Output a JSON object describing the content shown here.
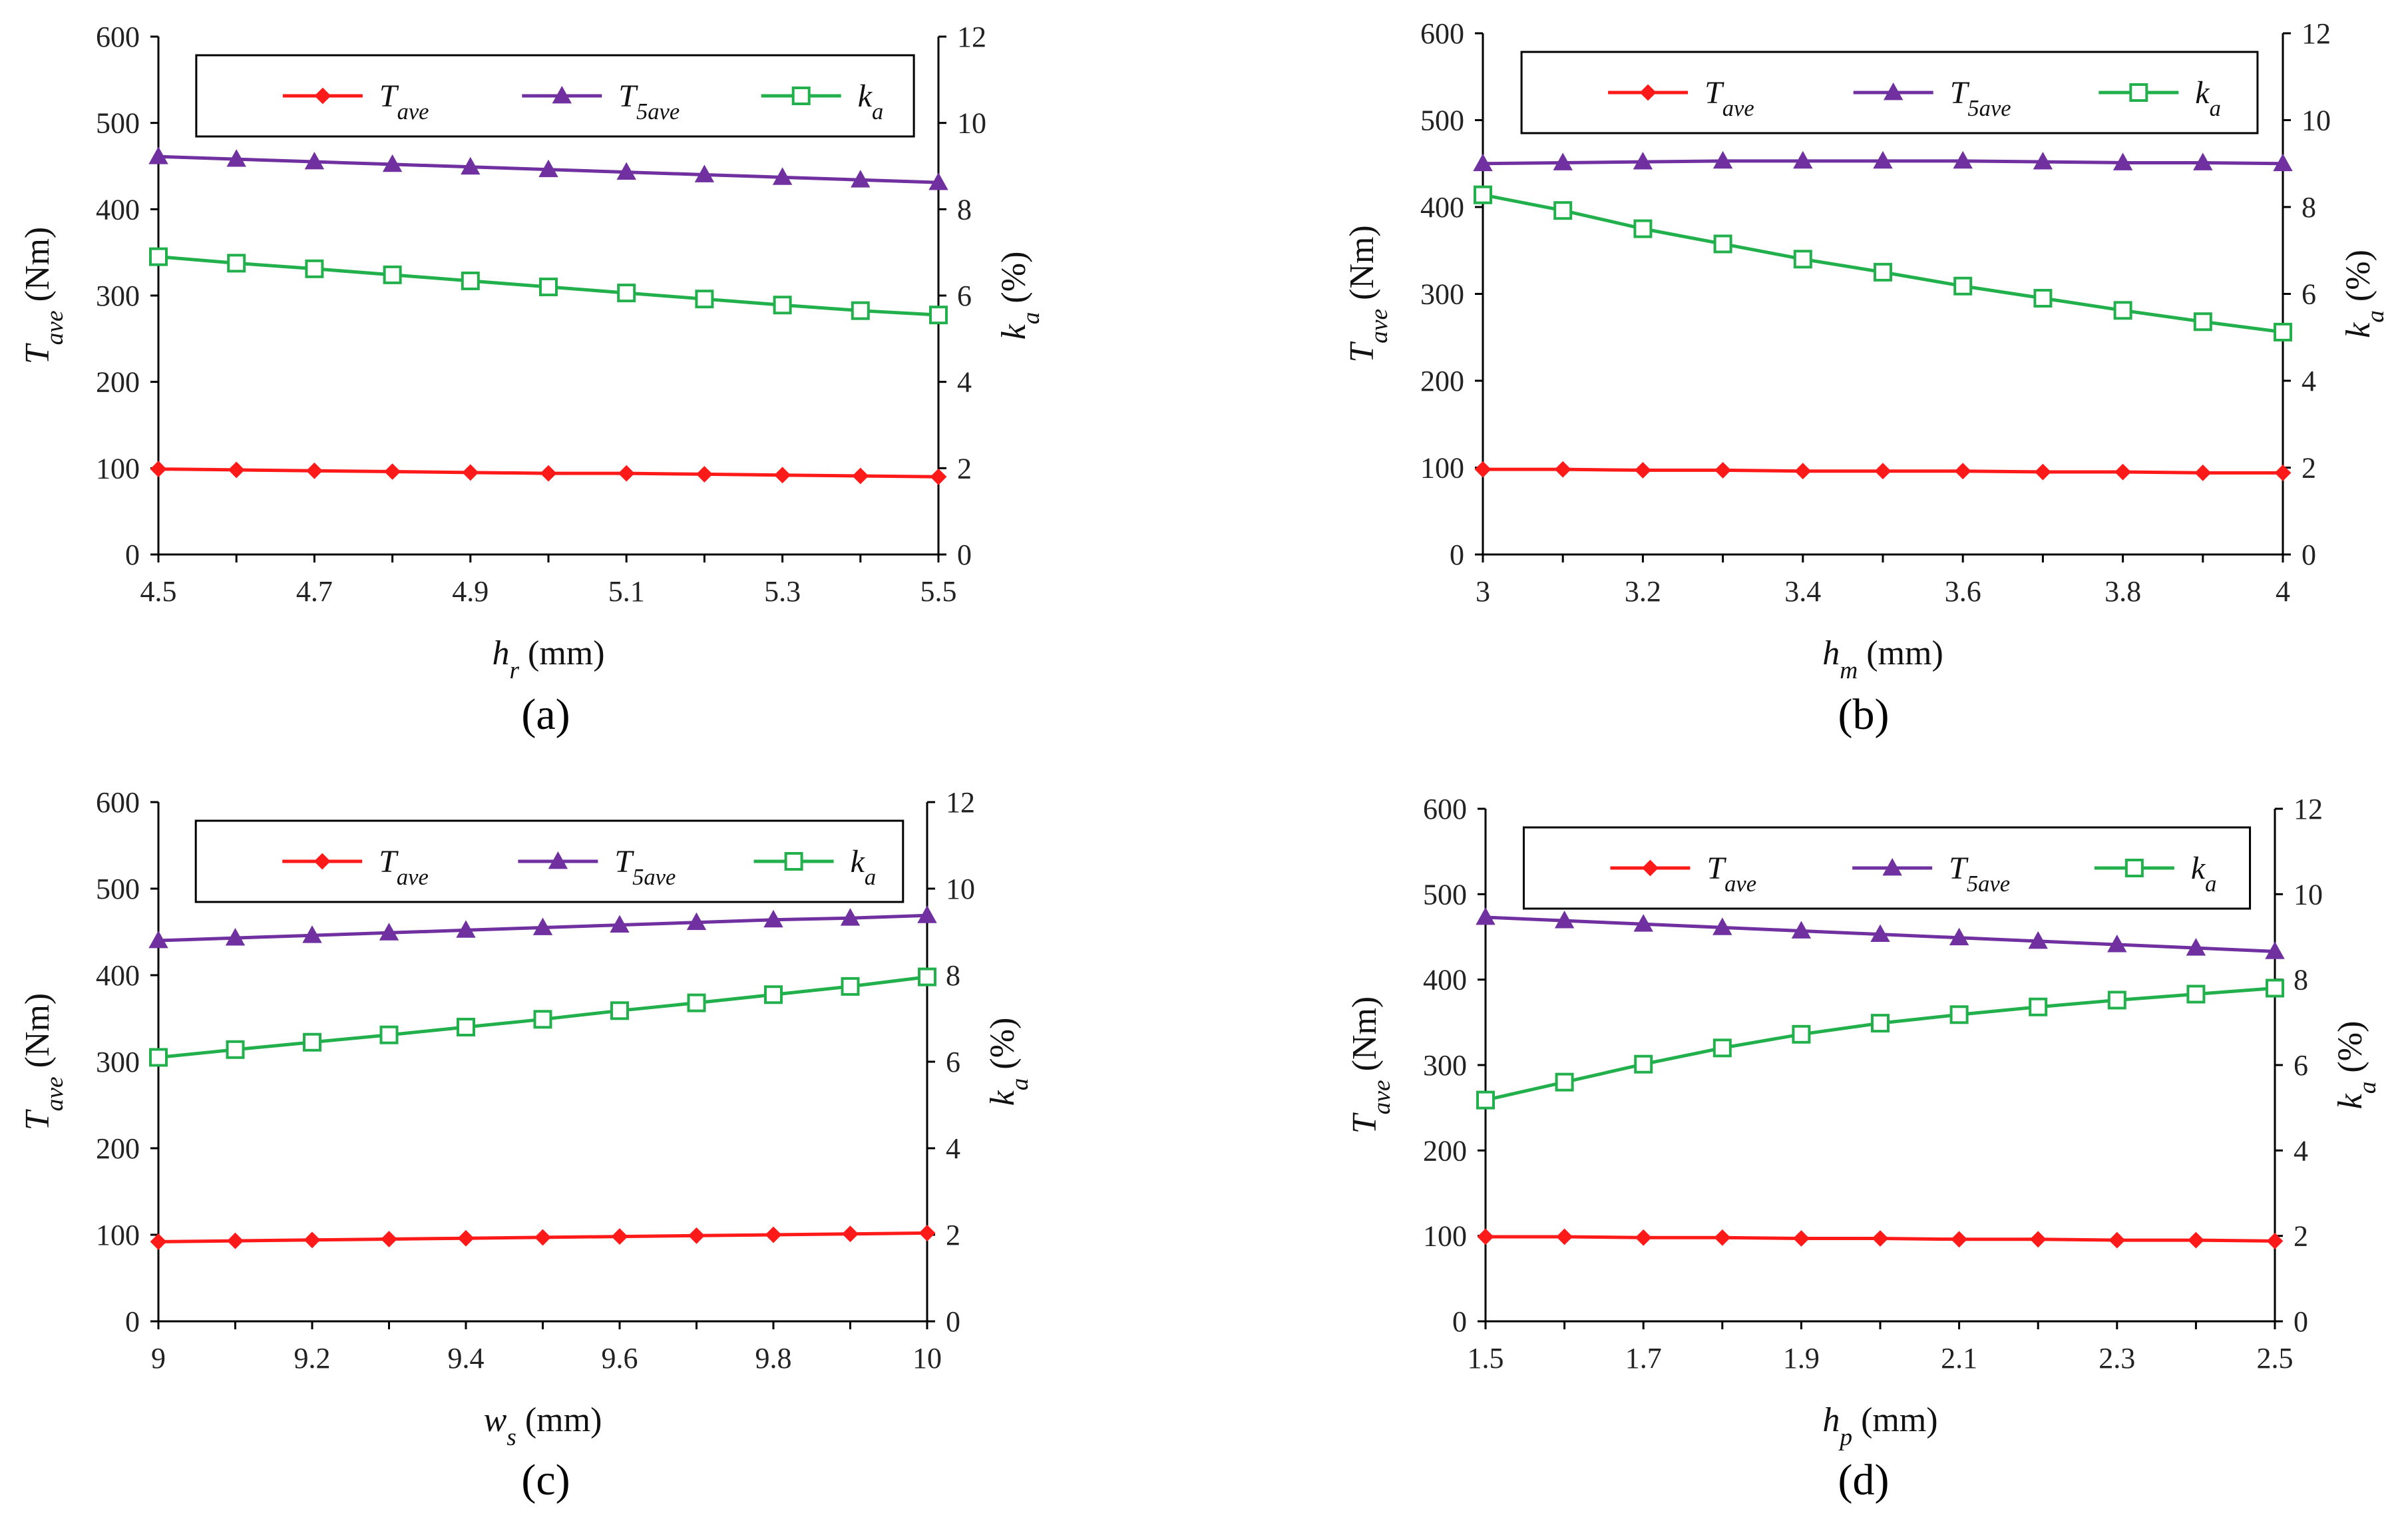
{
  "chart_data": [
    {
      "type": "line",
      "panel_label": "(a)",
      "xlabel": {
        "main": "h",
        "sub": "r",
        "unit": " (mm)"
      },
      "ylabel_left": {
        "main": "T",
        "sub": "ave",
        "unit": " (Nm)"
      },
      "ylabel_right": {
        "main": "k",
        "sub": "a",
        "unit": " (%)"
      },
      "xlim": [
        4.5,
        5.5
      ],
      "xticks": [
        "4.5",
        "4.7",
        "4.9",
        "5.1",
        "5.3",
        "5.5"
      ],
      "ylim_left": [
        0,
        600
      ],
      "yticks_left": [
        "0",
        "100",
        "200",
        "300",
        "400",
        "500",
        "600"
      ],
      "ylim_right": [
        0,
        12
      ],
      "yticks_right": [
        "0",
        "2",
        "4",
        "6",
        "8",
        "10",
        "12"
      ],
      "x": [
        4.5,
        4.6,
        4.7,
        4.8,
        4.9,
        5.0,
        5.1,
        5.2,
        5.3,
        5.4,
        5.5
      ],
      "series": [
        {
          "name": "Tave",
          "axis": "left",
          "values": [
            99,
            98,
            97,
            96,
            95,
            94,
            94,
            93,
            92,
            91,
            90
          ]
        },
        {
          "name": "T5ave",
          "axis": "left",
          "values": [
            461,
            458,
            455,
            452,
            449,
            446,
            443,
            440,
            437,
            434,
            431
          ]
        },
        {
          "name": "ka",
          "axis": "right",
          "values": [
            6.9,
            6.75,
            6.62,
            6.48,
            6.34,
            6.2,
            6.06,
            5.92,
            5.78,
            5.65,
            5.55
          ]
        }
      ]
    },
    {
      "type": "line",
      "panel_label": "(b)",
      "xlabel": {
        "main": "h",
        "sub": "m",
        "unit": " (mm)"
      },
      "ylabel_left": {
        "main": "T",
        "sub": "ave",
        "unit": " (Nm)"
      },
      "ylabel_right": {
        "main": "k",
        "sub": "a",
        "unit": " (%)"
      },
      "xlim": [
        3,
        4
      ],
      "xticks": [
        "3",
        "3.2",
        "3.4",
        "3.6",
        "3.8",
        "4"
      ],
      "ylim_left": [
        0,
        600
      ],
      "yticks_left": [
        "0",
        "100",
        "200",
        "300",
        "400",
        "500",
        "600"
      ],
      "ylim_right": [
        0,
        12
      ],
      "yticks_right": [
        "0",
        "2",
        "4",
        "6",
        "8",
        "10",
        "12"
      ],
      "x": [
        3.0,
        3.1,
        3.2,
        3.3,
        3.4,
        3.5,
        3.6,
        3.7,
        3.8,
        3.9,
        4.0
      ],
      "series": [
        {
          "name": "Tave",
          "axis": "left",
          "values": [
            98,
            98,
            97,
            97,
            96,
            96,
            96,
            95,
            95,
            94,
            94
          ]
        },
        {
          "name": "T5ave",
          "axis": "left",
          "values": [
            450,
            451,
            452,
            453,
            453,
            453,
            453,
            452,
            451,
            451,
            450
          ]
        },
        {
          "name": "ka",
          "axis": "right",
          "values": [
            8.28,
            7.92,
            7.5,
            7.15,
            6.8,
            6.5,
            6.18,
            5.9,
            5.62,
            5.36,
            5.12
          ]
        }
      ]
    },
    {
      "type": "line",
      "panel_label": "(c)",
      "xlabel": {
        "main": "w",
        "sub": "s",
        "unit": " (mm)"
      },
      "ylabel_left": {
        "main": "T",
        "sub": "ave",
        "unit": " (Nm)"
      },
      "ylabel_right": {
        "main": "k",
        "sub": "a",
        "unit": " (%)"
      },
      "xlim": [
        9,
        10
      ],
      "xticks": [
        "9",
        "9.2",
        "9.4",
        "9.6",
        "9.8",
        "10"
      ],
      "ylim_left": [
        0,
        600
      ],
      "yticks_left": [
        "0",
        "100",
        "200",
        "300",
        "400",
        "500",
        "600"
      ],
      "ylim_right": [
        0,
        12
      ],
      "yticks_right": [
        "0",
        "2",
        "4",
        "6",
        "8",
        "10",
        "12"
      ],
      "x": [
        9.0,
        9.1,
        9.2,
        9.3,
        9.4,
        9.5,
        9.6,
        9.7,
        9.8,
        9.9,
        10.0
      ],
      "series": [
        {
          "name": "Tave",
          "axis": "left",
          "values": [
            92,
            93,
            94,
            95,
            96,
            97,
            98,
            99,
            100,
            101,
            102
          ]
        },
        {
          "name": "T5ave",
          "axis": "left",
          "values": [
            440,
            443,
            446,
            449,
            452,
            455,
            458,
            461,
            464,
            466,
            469
          ]
        },
        {
          "name": "ka",
          "axis": "right",
          "values": [
            6.1,
            6.28,
            6.45,
            6.62,
            6.8,
            6.98,
            7.18,
            7.36,
            7.55,
            7.74,
            7.96
          ]
        }
      ]
    },
    {
      "type": "line",
      "panel_label": "(d)",
      "xlabel": {
        "main": "h",
        "sub": "p",
        "unit": " (mm)"
      },
      "ylabel_left": {
        "main": "T",
        "sub": "ave",
        "unit": " (Nm)"
      },
      "ylabel_right": {
        "main": "k",
        "sub": "a",
        "unit": " (%)"
      },
      "xlim": [
        1.5,
        2.5
      ],
      "xticks": [
        "1.5",
        "1.7",
        "1.9",
        "2.1",
        "2.3",
        "2.5"
      ],
      "ylim_left": [
        0,
        600
      ],
      "yticks_left": [
        "0",
        "100",
        "200",
        "300",
        "400",
        "500",
        "600"
      ],
      "ylim_right": [
        0,
        12
      ],
      "yticks_right": [
        "0",
        "2",
        "4",
        "6",
        "8",
        "10",
        "12"
      ],
      "x": [
        1.5,
        1.6,
        1.7,
        1.8,
        1.9,
        2.0,
        2.1,
        2.2,
        2.3,
        2.4,
        2.5
      ],
      "series": [
        {
          "name": "Tave",
          "axis": "left",
          "values": [
            99,
            99,
            98,
            98,
            97,
            97,
            96,
            96,
            95,
            95,
            94
          ]
        },
        {
          "name": "T5ave",
          "axis": "left",
          "values": [
            473,
            469,
            465,
            461,
            457,
            453,
            449,
            445,
            441,
            437,
            433
          ]
        },
        {
          "name": "ka",
          "axis": "right",
          "values": [
            5.18,
            5.6,
            6.02,
            6.4,
            6.72,
            6.98,
            7.18,
            7.36,
            7.52,
            7.66,
            7.8
          ]
        }
      ]
    }
  ],
  "legend": [
    {
      "main": "T",
      "sub": "ave",
      "color": "#ff1a1a",
      "marker": "diamond"
    },
    {
      "main": "T",
      "sub": "5ave",
      "color": "#7030a0",
      "marker": "triangle"
    },
    {
      "main": "k",
      "sub": "a",
      "color": "#21b04b",
      "marker": "open-square"
    }
  ],
  "colors": {
    "Tave": "#ff1a1a",
    "T5ave": "#7030a0",
    "ka": "#21b04b",
    "axis": "#000000"
  }
}
